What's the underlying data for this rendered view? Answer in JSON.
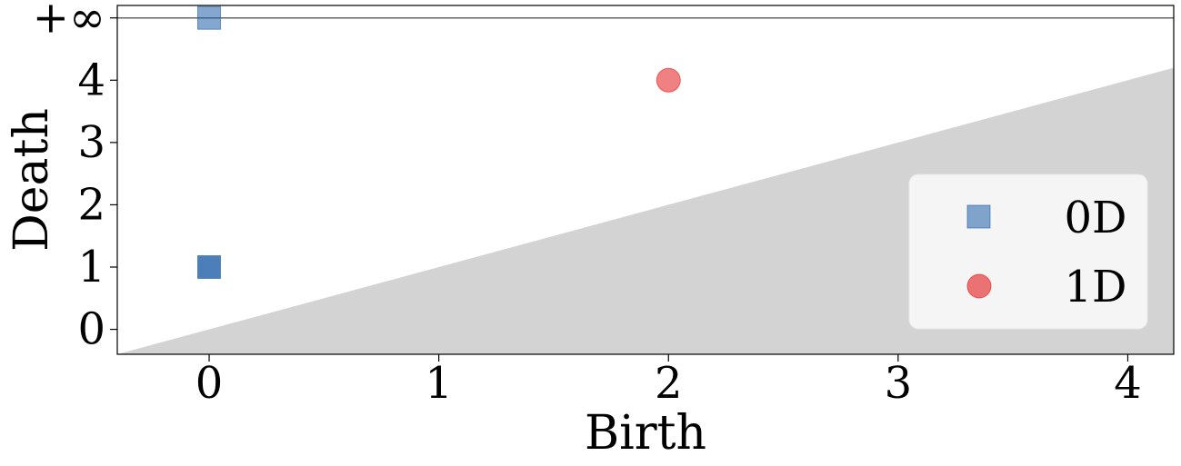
{
  "chart_data": {
    "type": "scatter",
    "title": "",
    "xlabel": "Birth",
    "ylabel": "Death",
    "xlim": [
      -0.4,
      4.2
    ],
    "ylim": [
      -0.4,
      5.2
    ],
    "x_ticks": [
      0,
      1,
      2,
      3,
      4
    ],
    "y_ticks": [
      0,
      1,
      2,
      3,
      4
    ],
    "infinity_label": "+∞",
    "infinity_value": 5,
    "diagonal_fill_color": "#d3d3d3",
    "infinity_line_color": "#666666",
    "legend_placement": "lower-right",
    "grid": false,
    "series": [
      {
        "name": "0D",
        "marker": "square",
        "color": "#1f5fa8",
        "points": [
          {
            "x": 0,
            "y": 1,
            "count": 2
          },
          {
            "x": 0,
            "y": "+∞",
            "count": 1
          }
        ]
      },
      {
        "name": "1D",
        "marker": "circle",
        "color": "#e41a1c",
        "points": [
          {
            "x": 2,
            "y": 4,
            "count": 1
          }
        ]
      }
    ]
  }
}
